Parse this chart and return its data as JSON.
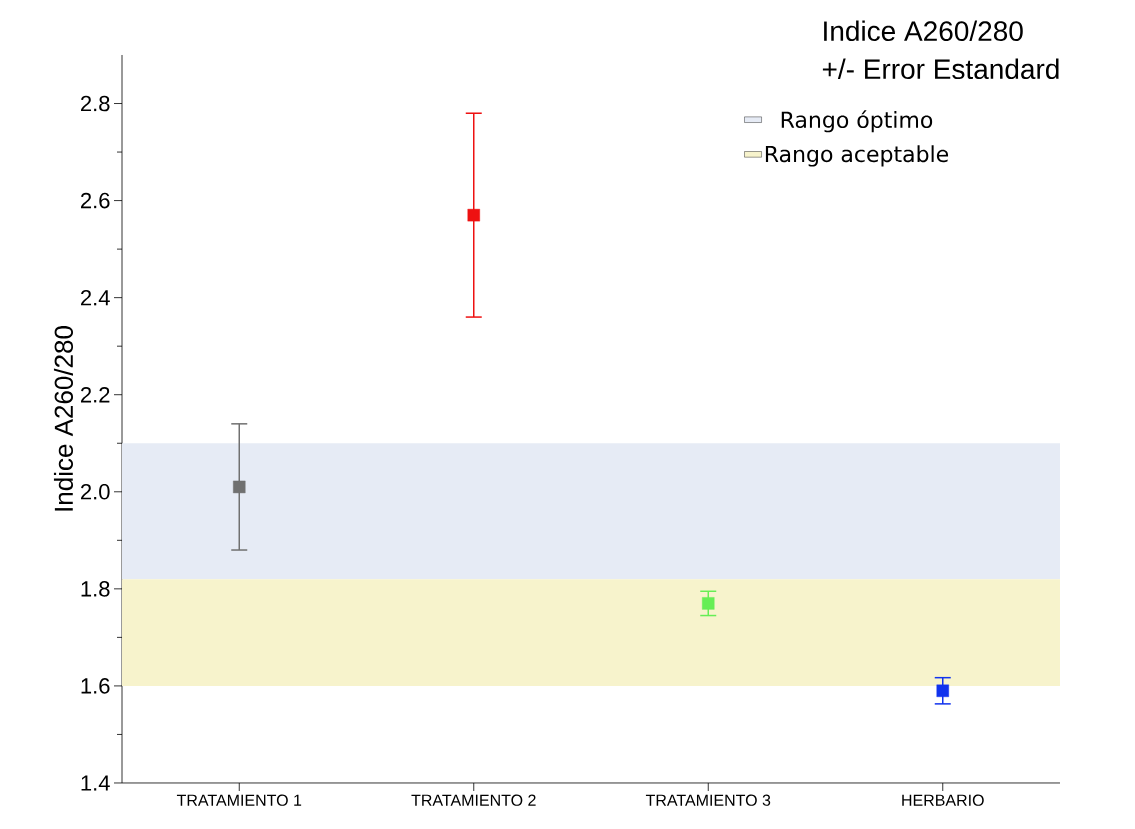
{
  "chart_data": {
    "type": "scatter",
    "title": "Indice A260/280",
    "subtitle": "+/- Error Estandard",
    "ylabel": "Indice A260/280",
    "categories": [
      "TRATAMIENTO 1",
      "TRATAMIENTO 2",
      "TRATAMIENTO 3",
      "HERBARIO"
    ],
    "values": [
      2.01,
      2.57,
      1.77,
      1.59
    ],
    "errors": [
      0.13,
      0.21,
      0.025,
      0.027
    ],
    "colors": [
      "#707070",
      "#ee1111",
      "#66ee55",
      "#1133ee"
    ],
    "ylim": [
      1.4,
      2.9
    ],
    "yticks": [
      1.4,
      1.6,
      1.8,
      {
        "value": 2.0,
        "label": "2.0"
      },
      2.2,
      2.4,
      2.6,
      2.8
    ],
    "bands": [
      {
        "axis": "y",
        "from": 1.82,
        "to": 2.1,
        "label": "Rango óptimo",
        "color": "#e6ebf5"
      },
      {
        "axis": "y",
        "from": 1.6,
        "to": 1.82,
        "label": "Rango aceptable",
        "color": "#f7f3cc"
      }
    ],
    "marker": "square",
    "legend": "top right"
  }
}
